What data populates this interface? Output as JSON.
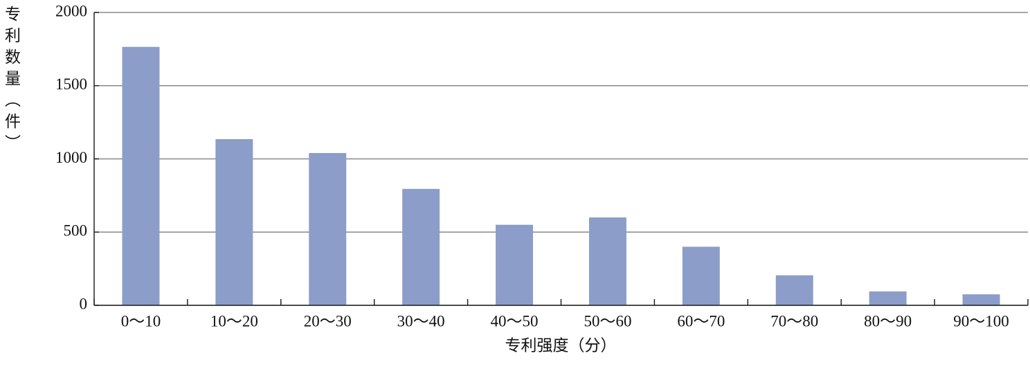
{
  "chart_data": {
    "type": "bar",
    "x_label": "专利强度（分）",
    "y_label": "专利数量（件）",
    "categories": [
      "0～10",
      "10～20",
      "20～30",
      "30～40",
      "40～50",
      "50～60",
      "60～70",
      "70～80",
      "80～90",
      "90～100"
    ],
    "values": [
      1765,
      1135,
      1040,
      795,
      550,
      600,
      400,
      205,
      95,
      75
    ],
    "color": "#8b9dc8",
    "ylim": [
      0,
      2000
    ],
    "yticks": [
      0,
      500,
      1000,
      1500,
      2000
    ],
    "grid": true
  }
}
